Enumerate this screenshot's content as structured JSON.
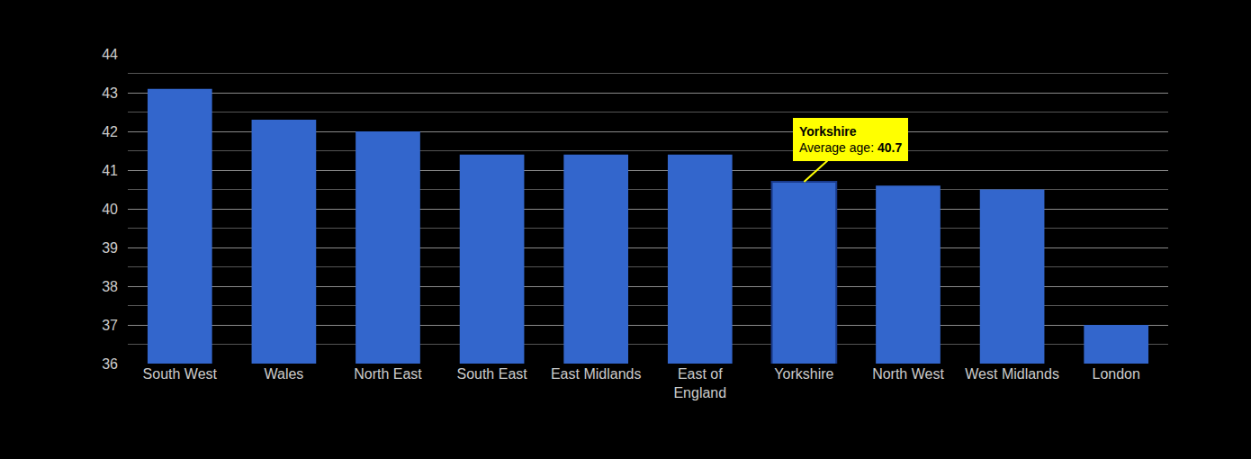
{
  "chart_data": {
    "type": "bar",
    "categories": [
      "South West",
      "Wales",
      "North East",
      "South East",
      "East Midlands",
      "East of England",
      "Yorkshire",
      "North West",
      "West Midlands",
      "London"
    ],
    "values": [
      43.1,
      42.3,
      42.0,
      41.4,
      41.4,
      41.4,
      40.7,
      40.6,
      40.5,
      37.0
    ],
    "color": "#3366cc",
    "ylim": [
      36,
      44
    ],
    "yticks": [
      36,
      37,
      38,
      39,
      40,
      41,
      42,
      43,
      44
    ],
    "grid": true,
    "annotation": {
      "category": "Yorkshire",
      "title": "Yorkshire",
      "label": "Average age:",
      "value": 40.7
    }
  }
}
